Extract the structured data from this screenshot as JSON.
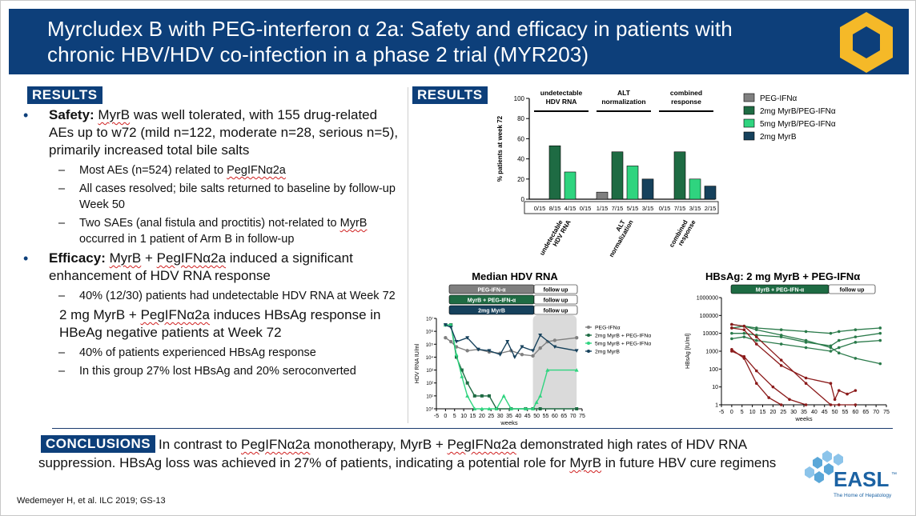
{
  "title": "Myrcludex B with PEG-interferon α 2a: Safety and efficacy in patients with chronic HBV/HDV co-infection in a phase 2 trial (MYR203)",
  "results_label": "RESULTS",
  "results_label_right": "RESULTS",
  "conclusions_label": "CONCLUSIONS",
  "safety": {
    "label": "Safety:",
    "text_parts": [
      "MyrB",
      " was well tolerated, with 155 drug-related AEs up to w72 (mild n=122, moderate n=28, serious n=5), primarily increased total bile salts"
    ],
    "sub1_parts": [
      "Most AEs (n=524) related to ",
      "PegIFNα2a"
    ],
    "sub2": "All cases resolved; bile salts returned to baseline by follow-up Week 50",
    "sub3_parts": [
      "Two SAEs (anal fistula and proctitis) not-related to ",
      "MyrB",
      " occurred in 1 patient of Arm B in follow-up"
    ]
  },
  "efficacy": {
    "label": "Efficacy:",
    "text_parts": [
      "MyrB",
      " + ",
      "PegIFNα2a",
      " induced a significant enhancement of HDV RNA response"
    ],
    "sub1": "40% (12/30) patients had undetectable HDV RNA at Week 72",
    "line2_parts": [
      "2 mg MyrB + ",
      "PegIFNα2a",
      " induces HBsAg response in HBeAg negative patients at Week 72"
    ],
    "sub2": "40% of patients experienced HBsAg response",
    "sub3": "In this group 27% lost HBsAg and 20% seroconverted"
  },
  "conclusion_parts": [
    "In contrast to ",
    "PegIFNα2a",
    " monotherapy, MyrB + ",
    "PegIFNα2a",
    " demonstrated high rates of HDV RNA suppression. HBsAg loss was achieved in 27% of patients, indicating a potential role for ",
    "MyrB",
    " in future HBV cure regimens"
  ],
  "citation": "Wedemeyer H, et al. ILC 2019; GS-13",
  "easl": {
    "name": "EASL",
    "tm": "™",
    "tagline": "The Home of Hepatology"
  },
  "colors": {
    "brand": "#0d3f7a",
    "peg": "#808080",
    "myr2_peg": "#1e6b43",
    "myr5_peg": "#2fd47f",
    "myr2": "#16415c",
    "hbs_dark": "#1e6b43",
    "hbs_red": "#8b1a1a"
  },
  "chart_data": [
    {
      "type": "bar",
      "title": "",
      "ylabel": "% patients at week 72",
      "ylim": [
        0,
        100
      ],
      "yticks": [
        0,
        20,
        40,
        60,
        80,
        100
      ],
      "groups": [
        "undetectable HDV RNA",
        "ALT normalization",
        "combined response"
      ],
      "group_headers": [
        "undetectable\nHDV RNA",
        "ALT\nnormalization",
        "combined\nresponse"
      ],
      "series": [
        {
          "name": "PEG-IFNα",
          "values": [
            0,
            7,
            0
          ],
          "labels": [
            "0/15",
            "1/15",
            "0/15"
          ]
        },
        {
          "name": "2mg MyrB/PEG-IFNα",
          "values": [
            53,
            47,
            47
          ],
          "labels": [
            "8/15",
            "7/15",
            "7/15"
          ]
        },
        {
          "name": "5mg MyrB/PEG-IFNα",
          "values": [
            27,
            33,
            20
          ],
          "labels": [
            "4/15",
            "5/15",
            "3/15"
          ]
        },
        {
          "name": "2mg MyrB",
          "values": [
            0,
            20,
            13
          ],
          "labels": [
            "0/15",
            "3/15",
            "2/15"
          ]
        }
      ]
    },
    {
      "type": "line",
      "title": "Median HDV RNA",
      "ylabel": "HDV RNA IU/ml",
      "xlabel": "weeks",
      "xticks": [
        -5,
        0,
        5,
        10,
        15,
        20,
        25,
        30,
        35,
        40,
        45,
        50,
        55,
        60,
        65,
        70,
        75
      ],
      "ytick_labels": [
        "10⁰",
        "10¹",
        "10²",
        "10³",
        "10⁴",
        "10⁵",
        "10⁶",
        "10⁷"
      ],
      "ylim_log10": [
        0,
        7
      ],
      "treatment_bars": [
        {
          "label": "PEG-IFN-α",
          "follow": "follow up"
        },
        {
          "label": "MyrB + PEG-IFN-α",
          "follow": "follow up"
        },
        {
          "label": "2mg  MyrB",
          "follow": "follow up"
        }
      ],
      "shaded_region_weeks": [
        48,
        72
      ],
      "series": [
        {
          "name": "PEG-IFNα",
          "x": [
            0,
            3,
            6,
            12,
            18,
            24,
            30,
            36,
            42,
            48,
            52,
            56,
            60,
            72
          ],
          "y_log10": [
            5.5,
            5.2,
            4.8,
            4.5,
            4.6,
            4.4,
            4.3,
            4.5,
            4.2,
            4.1,
            4.7,
            5.2,
            5.3,
            5.5
          ]
        },
        {
          "name": "2mg MyrB + PEG-IFNα",
          "x": [
            0,
            3,
            6,
            9,
            12,
            16,
            20,
            24,
            28,
            36,
            44,
            48,
            52,
            72
          ],
          "y_log10": [
            6.5,
            6.5,
            4.0,
            3.0,
            2.0,
            1.0,
            1.0,
            1.0,
            0,
            0,
            0,
            0,
            0,
            0
          ]
        },
        {
          "name": "5mg MyrB + PEG-IFNα",
          "x": [
            0,
            3,
            6,
            9,
            12,
            16,
            20,
            24,
            28,
            32,
            36,
            44,
            48,
            50,
            52,
            56,
            72
          ],
          "y_log10": [
            6.5,
            6.5,
            4.2,
            2.5,
            1.0,
            0,
            0,
            0,
            0,
            1.0,
            0,
            0,
            0,
            0.5,
            1.0,
            3.0,
            3.0
          ]
        },
        {
          "name": "2mg MyrB",
          "x": [
            0,
            3,
            6,
            12,
            18,
            24,
            30,
            34,
            38,
            42,
            48,
            52,
            60,
            72
          ],
          "y_log10": [
            6.5,
            6.3,
            5.2,
            5.5,
            4.6,
            4.5,
            4.2,
            5.2,
            4.0,
            4.8,
            4.5,
            5.7,
            4.8,
            4.5
          ]
        }
      ]
    },
    {
      "type": "line",
      "title": "HBsAg:  2 mg  MyrB + PEG-IFNα",
      "ylabel": "HBsAg [IU/ml]",
      "xlabel": "weeks",
      "xticks": [
        -5,
        0,
        5,
        10,
        15,
        20,
        25,
        30,
        35,
        40,
        45,
        50,
        55,
        60,
        65,
        70,
        75
      ],
      "ytick_labels": [
        "1",
        "10",
        "100",
        "1000",
        "10000",
        "100000",
        "1000000"
      ],
      "ylim_log10": [
        0,
        6
      ],
      "treatment_bars": [
        {
          "label": "MyrB + PEG-IFN-α",
          "follow": "follow up"
        }
      ],
      "series": [
        {
          "group": "non-responder",
          "x": [
            0,
            6,
            12,
            24,
            36,
            48,
            52,
            60,
            72
          ],
          "y_log10": [
            4.3,
            4.4,
            4.3,
            4.2,
            4.1,
            4.0,
            4.1,
            4.2,
            4.3
          ]
        },
        {
          "group": "non-responder",
          "x": [
            0,
            6,
            12,
            24,
            36,
            48,
            52,
            60,
            72
          ],
          "y_log10": [
            4.0,
            4.0,
            3.9,
            3.8,
            3.5,
            3.3,
            3.6,
            3.8,
            4.0
          ]
        },
        {
          "group": "non-responder",
          "x": [
            0,
            6,
            12,
            24,
            36,
            48,
            52,
            60,
            72
          ],
          "y_log10": [
            3.7,
            3.8,
            3.6,
            3.4,
            3.2,
            3.0,
            3.2,
            3.5,
            3.6
          ]
        },
        {
          "group": "non-responder",
          "x": [
            0,
            6,
            12,
            24,
            36,
            48,
            52,
            60,
            72
          ],
          "y_log10": [
            4.5,
            4.4,
            4.2,
            3.9,
            3.6,
            3.2,
            2.9,
            2.6,
            2.3
          ]
        },
        {
          "group": "responder",
          "x": [
            0,
            6,
            12,
            24,
            36,
            48,
            52,
            60
          ],
          "y_log10": [
            4.5,
            4.4,
            3.8,
            2.5,
            1.2,
            0,
            0,
            0
          ]
        },
        {
          "group": "responder",
          "x": [
            0,
            6,
            12,
            20,
            28,
            36
          ],
          "y_log10": [
            3.0,
            2.7,
            1.9,
            1.0,
            0.3,
            0
          ]
        },
        {
          "group": "responder",
          "x": [
            0,
            6,
            12,
            18,
            24
          ],
          "y_log10": [
            3.1,
            2.6,
            1.2,
            0.4,
            0
          ]
        },
        {
          "group": "responder",
          "x": [
            0,
            6,
            12,
            24,
            36,
            48,
            50,
            52,
            56,
            60
          ],
          "y_log10": [
            4.3,
            4.2,
            3.4,
            2.2,
            1.5,
            1.2,
            0.3,
            0.8,
            0.6,
            0.8
          ]
        }
      ]
    }
  ]
}
